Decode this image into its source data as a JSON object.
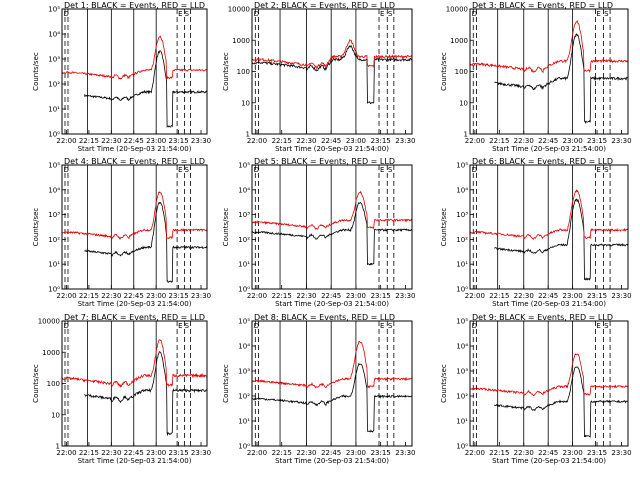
{
  "figure": {
    "time_ticks": [
      "22:00",
      "22:15",
      "22:30",
      "22:45",
      "23:00",
      "23:15",
      "23:30"
    ],
    "time_tick_minutes": [
      0,
      15,
      30,
      45,
      60,
      75,
      90
    ],
    "x_axis_minutes": [
      -3,
      94
    ],
    "xlabel": "Start Time (20-Sep-03 21:54:00)",
    "ylabel": "Counts/sec",
    "series_colors": {
      "events": "#000000",
      "lld": "#e00000"
    },
    "solid_markers_minutes": [
      14,
      30,
      45,
      60
    ],
    "dashed_markers_minutes": [
      -1,
      1,
      74,
      79,
      83
    ],
    "flag_text": {
      "left": "D",
      "right_a": "E",
      "right_b": "S"
    }
  },
  "chart_data": [
    {
      "type": "line",
      "title": "Det 1: BLACK = Events, RED = LLD",
      "yscale": "log",
      "ylim": [
        1,
        100000
      ],
      "yticks": [
        "10⁰",
        "10¹",
        "10²",
        "10³",
        "10⁴",
        "10⁵"
      ],
      "peak_minutes": 63,
      "series": [
        {
          "name": "Events",
          "baseline": 40,
          "peak": 2000,
          "start_min": 12
        },
        {
          "name": "LLD",
          "baseline": 300,
          "peak": 8000,
          "start_min": -3
        }
      ]
    },
    {
      "type": "line",
      "title": "Det 2: BLACK = Events, RED = LLD",
      "yscale": "log",
      "ylim": [
        1,
        10000
      ],
      "yticks": [
        "1",
        "10",
        "100",
        "1000",
        "10000"
      ],
      "peak_minutes": 57,
      "series": [
        {
          "name": "Events",
          "baseline": 200,
          "peak": 600,
          "start_min": -3
        },
        {
          "name": "LLD",
          "baseline": 250,
          "peak": 900,
          "start_min": -3
        }
      ]
    },
    {
      "type": "line",
      "title": "Det 3: BLACK = Events, RED = LLD",
      "yscale": "log",
      "ylim": [
        1,
        10000
      ],
      "yticks": [
        "1",
        "10",
        "100",
        "1000",
        "10000"
      ],
      "peak_minutes": 63,
      "series": [
        {
          "name": "Events",
          "baseline": 50,
          "peak": 1500,
          "start_min": 12
        },
        {
          "name": "LLD",
          "baseline": 180,
          "peak": 4000,
          "start_min": -3
        }
      ]
    },
    {
      "type": "line",
      "title": "Det 4: BLACK = Events, RED = LLD",
      "yscale": "log",
      "ylim": [
        1,
        100000
      ],
      "yticks": [
        "10⁰",
        "10¹",
        "10²",
        "10³",
        "10⁴",
        "10⁵"
      ],
      "peak_minutes": 63,
      "series": [
        {
          "name": "Events",
          "baseline": 40,
          "peak": 3000,
          "start_min": 12
        },
        {
          "name": "LLD",
          "baseline": 200,
          "peak": 8000,
          "start_min": -3
        }
      ]
    },
    {
      "type": "line",
      "title": "Det 5: BLACK = Events, RED = LLD",
      "yscale": "log",
      "ylim": [
        1,
        100000
      ],
      "yticks": [
        "10⁰",
        "10¹",
        "10²",
        "10³",
        "10⁴",
        "10⁵"
      ],
      "peak_minutes": 63,
      "series": [
        {
          "name": "Events",
          "baseline": 200,
          "peak": 3000,
          "start_min": -3
        },
        {
          "name": "LLD",
          "baseline": 500,
          "peak": 8000,
          "start_min": -3
        }
      ]
    },
    {
      "type": "line",
      "title": "Det 6: BLACK = Events, RED = LLD",
      "yscale": "log",
      "ylim": [
        1,
        100000
      ],
      "yticks": [
        "10⁰",
        "10¹",
        "10²",
        "10³",
        "10⁴",
        "10⁵"
      ],
      "peak_minutes": 63,
      "series": [
        {
          "name": "Events",
          "baseline": 50,
          "peak": 4000,
          "start_min": 12
        },
        {
          "name": "LLD",
          "baseline": 200,
          "peak": 9000,
          "start_min": -3
        }
      ]
    },
    {
      "type": "line",
      "title": "Det 7: BLACK = Events, RED = LLD",
      "yscale": "log",
      "ylim": [
        1,
        10000
      ],
      "yticks": [
        "1",
        "10",
        "100",
        "1000",
        "10000"
      ],
      "peak_minutes": 63,
      "series": [
        {
          "name": "Events",
          "baseline": 50,
          "peak": 1000,
          "start_min": 12
        },
        {
          "name": "LLD",
          "baseline": 150,
          "peak": 2500,
          "start_min": -3
        }
      ]
    },
    {
      "type": "line",
      "title": "Det 8: BLACK = Events, RED = LLD",
      "yscale": "log",
      "ylim": [
        1,
        100000
      ],
      "yticks": [
        "10⁰",
        "10¹",
        "10²",
        "10³",
        "10⁴",
        "10⁵"
      ],
      "peak_minutes": 63,
      "series": [
        {
          "name": "Events",
          "baseline": 80,
          "peak": 2000,
          "start_min": -3
        },
        {
          "name": "LLD",
          "baseline": 400,
          "peak": 15000,
          "start_min": -3
        }
      ]
    },
    {
      "type": "line",
      "title": "Det 9: BLACK = Events, RED = LLD",
      "yscale": "log",
      "ylim": [
        1,
        100000
      ],
      "yticks": [
        "10⁰",
        "10¹",
        "10²",
        "10³",
        "10⁴",
        "10⁵"
      ],
      "peak_minutes": 63,
      "series": [
        {
          "name": "Events",
          "baseline": 50,
          "peak": 1500,
          "start_min": 12
        },
        {
          "name": "LLD",
          "baseline": 200,
          "peak": 5000,
          "start_min": -3
        }
      ]
    }
  ]
}
